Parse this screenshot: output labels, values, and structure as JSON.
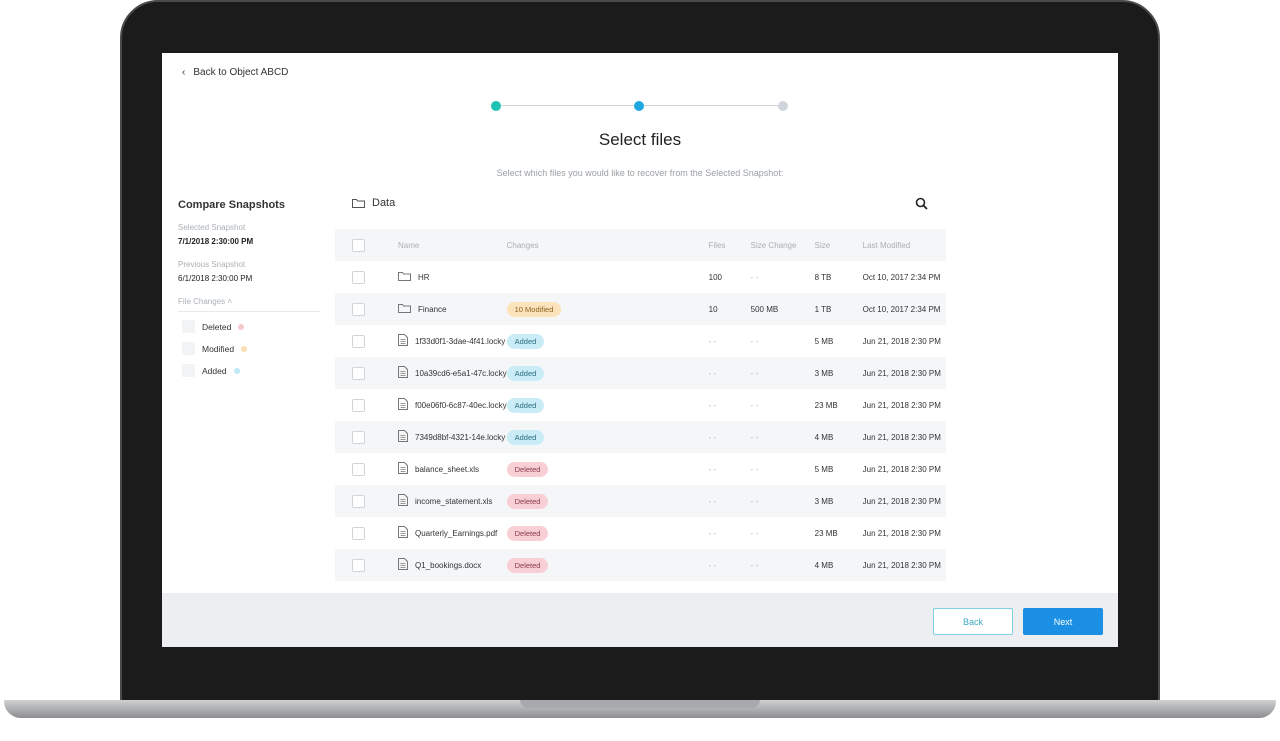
{
  "nav": {
    "back_label": "Back to Object ABCD"
  },
  "stepper": {
    "steps": 3,
    "current": 2,
    "colors": {
      "done": "#1fc2b4",
      "current": "#1ea8e0",
      "todo": "#cfd5db"
    }
  },
  "header": {
    "title": "Select files",
    "subtitle": "Select which files you would like to recover from the Selected Snapshot:"
  },
  "sidebar": {
    "title": "Compare Snapshots",
    "selected_label": "Selected Snapshot",
    "selected_value": "7/1/2018 2:30:00 PM",
    "previous_label": "Previous Snapshot",
    "previous_value": "6/1/2018 2:30:00 PM",
    "file_changes_label": "File Changes",
    "legend": [
      {
        "label": "Deleted",
        "color": "#f6c7cd"
      },
      {
        "label": "Modified",
        "color": "#fbe0b3"
      },
      {
        "label": "Added",
        "color": "#bfe8f5"
      }
    ]
  },
  "folder": {
    "name": "Data"
  },
  "table": {
    "columns": [
      "Name",
      "Changes",
      "Files",
      "Size Change",
      "Size",
      "Last Modified"
    ],
    "rows": [
      {
        "type": "folder",
        "name": "HR",
        "change": "",
        "files": "100",
        "size_change": "- -",
        "size": "8 TB",
        "modified": "Oct 10, 2017 2:34 PM"
      },
      {
        "type": "folder",
        "name": "Finance",
        "change": "10 Modified",
        "change_type": "modified",
        "files": "10",
        "size_change": "500 MB",
        "size": "1 TB",
        "modified": "Oct 10, 2017 2:34 PM"
      },
      {
        "type": "file",
        "name": "1f33d0f1-3dae-4f41.locky",
        "change": "Added",
        "change_type": "added",
        "files": "- -",
        "size_change": "- -",
        "size": "5 MB",
        "modified": "Jun 21, 2018 2:30 PM"
      },
      {
        "type": "file",
        "name": "10a39cd6-e5a1-47c.locky",
        "change": "Added",
        "change_type": "added",
        "files": "- -",
        "size_change": "- -",
        "size": "3 MB",
        "modified": "Jun 21, 2018 2:30 PM"
      },
      {
        "type": "file",
        "name": "f00e06f0-6c87-40ec.locky",
        "change": "Added",
        "change_type": "added",
        "files": "- -",
        "size_change": "- -",
        "size": "23 MB",
        "modified": "Jun 21, 2018 2:30 PM"
      },
      {
        "type": "file",
        "name": "7349d8bf-4321-14e.locky",
        "change": "Added",
        "change_type": "added",
        "files": "- -",
        "size_change": "- -",
        "size": "4 MB",
        "modified": "Jun 21, 2018 2:30 PM"
      },
      {
        "type": "file",
        "name": "balance_sheet.xls",
        "change": "Deleted",
        "change_type": "deleted",
        "files": "- -",
        "size_change": "- -",
        "size": "5 MB",
        "modified": "Jun 21, 2018 2:30 PM"
      },
      {
        "type": "file",
        "name": "income_statement.xls",
        "change": "Deleted",
        "change_type": "deleted",
        "files": "- -",
        "size_change": "- -",
        "size": "3 MB",
        "modified": "Jun 21, 2018 2:30 PM"
      },
      {
        "type": "file",
        "name": "Quarterly_Earnings.pdf",
        "change": "Deleted",
        "change_type": "deleted",
        "files": "- -",
        "size_change": "- -",
        "size": "23 MB",
        "modified": "Jun 21, 2018 2:30 PM"
      },
      {
        "type": "file",
        "name": "Q1_bookings.docx",
        "change": "Deleted",
        "change_type": "deleted",
        "files": "- -",
        "size_change": "- -",
        "size": "4 MB",
        "modified": "Jun 21, 2018 2:30 PM"
      }
    ]
  },
  "badge_colors": {
    "added": {
      "bg": "#c9ecf7",
      "fg": "#2a6c80"
    },
    "deleted": {
      "bg": "#f8cfd4",
      "fg": "#8a3a45"
    },
    "modified": {
      "bg": "#fde3bb",
      "fg": "#8a6220"
    }
  },
  "footer": {
    "back_label": "Back",
    "next_label": "Next",
    "accent": "#1a8fe3"
  }
}
